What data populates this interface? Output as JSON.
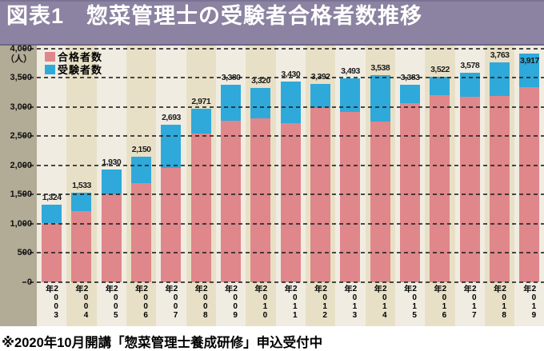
{
  "header": {
    "title": "図表1　惣菜管理士の受験者合格者数推移"
  },
  "footer": {
    "note": "※2020年10月開講「惣菜管理士養成研修」申込受付中"
  },
  "colors": {
    "header_bg": "#8b83a1",
    "header_text": "#ffffff",
    "examinees_bar": "#2fa9da",
    "passers_bar": "#df878a",
    "axis_strip": "#b2ab96",
    "column_light": "#f0ece2",
    "column_tan": "#e8e0c6",
    "gridline": "#232323"
  },
  "chart_data": {
    "type": "bar",
    "title": "惣菜管理士の受験者合格者数推移",
    "unit_label": "（人）",
    "xlabel": "",
    "ylabel": "",
    "ylim": [
      0,
      4000
    ],
    "ytick_step": 500,
    "yticks": [
      "4,000",
      "3,500",
      "3,000",
      "2,500",
      "2,000",
      "1,500",
      "1,000",
      "500",
      "0"
    ],
    "grid": "dashed-horizontal",
    "legend_position": "top-left",
    "legend": [
      {
        "label": "合格者数",
        "color": "#df878a"
      },
      {
        "label": "受験者数",
        "color": "#2fa9da"
      }
    ],
    "categories": [
      "2003年",
      "2004年",
      "2005年",
      "2006年",
      "2007年",
      "2008年",
      "2009年",
      "2010年",
      "2011年",
      "2012年",
      "2013年",
      "2014年",
      "2015年",
      "2016年",
      "2017年",
      "2018年",
      "2019年"
    ],
    "series": [
      {
        "name": "受験者数",
        "color": "#2fa9da",
        "values": [
          1324,
          1533,
          1930,
          2150,
          2693,
          2971,
          3380,
          3320,
          3430,
          3392,
          3493,
          3538,
          3383,
          3522,
          3578,
          3763,
          3917
        ],
        "value_labels": [
          "1,324",
          "1,533",
          "1,930",
          "2,150",
          "2,693",
          "2,971",
          "3,380",
          "3,320",
          "3,430",
          "3,392",
          "3,493",
          "3,538",
          "3,383",
          "3,522",
          "3,578",
          "3,763",
          "3,917"
        ]
      },
      {
        "name": "合格者数",
        "color": "#df878a",
        "values_estimated": true,
        "values": [
          1010,
          1220,
          1500,
          1700,
          1950,
          2550,
          2770,
          2810,
          2720,
          2980,
          2920,
          2750,
          3060,
          3200,
          3180,
          3190,
          3340
        ]
      }
    ]
  }
}
